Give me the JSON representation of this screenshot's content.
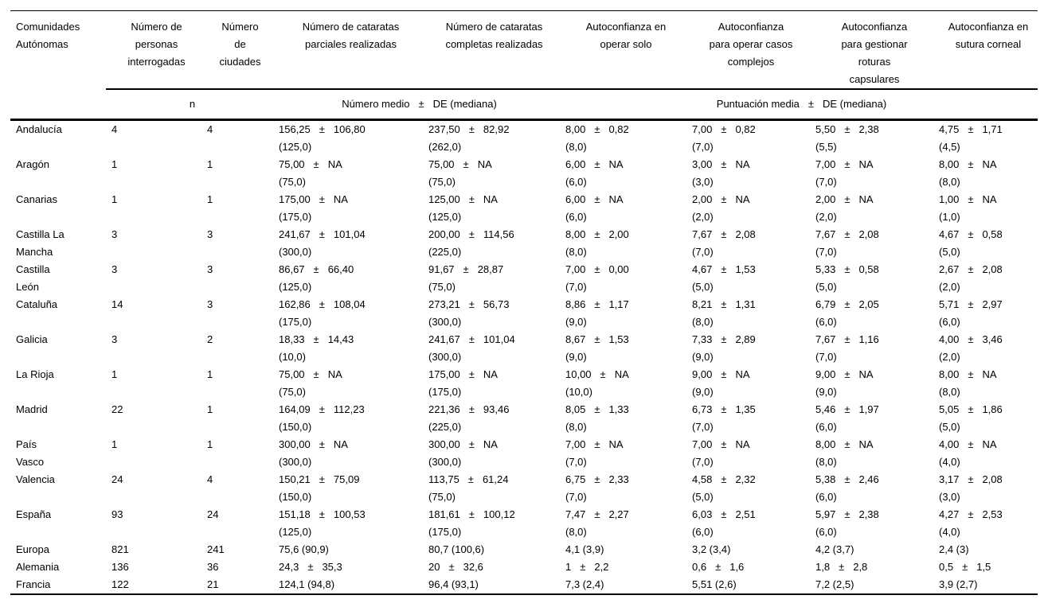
{
  "table": {
    "pm_sign": "±",
    "columns": [
      "Comunidades\nAutónomas",
      "Número de\npersonas\ninterrogadas",
      "Número\nde\nciudades",
      "Número de cataratas\nparciales realizadas",
      "Número de cataratas\ncompletas realizadas",
      "Autoconfianza en\noperar solo",
      "Autoconfianza\npara operar casos\ncomplejos",
      "Autoconfianza\npara gestionar\nroturas\ncapsulares",
      "Autoconfianza en\nsutura corneal"
    ],
    "subheader": {
      "n_label": "n",
      "numero_medio": "Número medio",
      "de_mediana": "DE (mediana)",
      "puntuacion_media": "Puntuación media"
    },
    "rows": [
      {
        "name": "Andalucía",
        "personas": "4",
        "ciudades": "4",
        "values": [
          {
            "mean": "156,25",
            "sd": "106,80",
            "median": "(125,0)"
          },
          {
            "mean": "237,50",
            "sd": "82,92",
            "median": "(262,0)"
          },
          {
            "mean": "8,00",
            "sd": "0,82",
            "median": "(8,0)"
          },
          {
            "mean": "7,00",
            "sd": "0,82",
            "median": "(7,0)"
          },
          {
            "mean": "5,50",
            "sd": "2,38",
            "median": "(5,5)"
          },
          {
            "mean": "4,75",
            "sd": "1,71",
            "median": "(4,5)"
          }
        ]
      },
      {
        "name": "Aragón",
        "personas": "1",
        "ciudades": "1",
        "values": [
          {
            "mean": "75,00",
            "sd": "NA",
            "median": "(75,0)"
          },
          {
            "mean": "75,00",
            "sd": "NA",
            "median": "(75,0)"
          },
          {
            "mean": "6,00",
            "sd": "NA",
            "median": "(6,0)"
          },
          {
            "mean": "3,00",
            "sd": "NA",
            "median": "(3,0)"
          },
          {
            "mean": "7,00",
            "sd": "NA",
            "median": "(7,0)"
          },
          {
            "mean": "8,00",
            "sd": "NA",
            "median": "(8,0)"
          }
        ]
      },
      {
        "name": "Canarias",
        "personas": "1",
        "ciudades": "1",
        "values": [
          {
            "mean": "175,00",
            "sd": "NA",
            "median": "(175,0)"
          },
          {
            "mean": "125,00",
            "sd": "NA",
            "median": "(125,0)"
          },
          {
            "mean": "6,00",
            "sd": "NA",
            "median": "(6,0)"
          },
          {
            "mean": "2,00",
            "sd": "NA",
            "median": "(2,0)"
          },
          {
            "mean": "2,00",
            "sd": "NA",
            "median": "(2,0)"
          },
          {
            "mean": "1,00",
            "sd": "NA",
            "median": "(1,0)"
          }
        ]
      },
      {
        "name": "Castilla La\nMancha",
        "personas": "3",
        "ciudades": "3",
        "values": [
          {
            "mean": "241,67",
            "sd": "101,04",
            "median": "(300,0)"
          },
          {
            "mean": "200,00",
            "sd": "114,56",
            "median": "(225,0)"
          },
          {
            "mean": "8,00",
            "sd": "2,00",
            "median": "(8,0)"
          },
          {
            "mean": "7,67",
            "sd": "2,08",
            "median": "(7,0)"
          },
          {
            "mean": "7,67",
            "sd": "2,08",
            "median": "(7,0)"
          },
          {
            "mean": "4,67",
            "sd": "0,58",
            "median": "(5,0)"
          }
        ]
      },
      {
        "name": "Castilla\nLeón",
        "personas": "3",
        "ciudades": "3",
        "values": [
          {
            "mean": "86,67",
            "sd": "66,40",
            "median": "(125,0)"
          },
          {
            "mean": "91,67",
            "sd": "28,87",
            "median": "(75,0)"
          },
          {
            "mean": "7,00",
            "sd": "0,00",
            "median": "(7,0)"
          },
          {
            "mean": "4,67",
            "sd": "1,53",
            "median": "(5,0)"
          },
          {
            "mean": "5,33",
            "sd": "0,58",
            "median": "(5,0)"
          },
          {
            "mean": "2,67",
            "sd": "2,08",
            "median": "(2,0)"
          }
        ]
      },
      {
        "name": "Cataluña",
        "personas": "14",
        "ciudades": "3",
        "values": [
          {
            "mean": "162,86",
            "sd": "108,04",
            "median": "(175,0)"
          },
          {
            "mean": "273,21",
            "sd": "56,73",
            "median": "(300,0)"
          },
          {
            "mean": "8,86",
            "sd": "1,17",
            "median": "(9,0)"
          },
          {
            "mean": "8,21",
            "sd": "1,31",
            "median": "(8,0)"
          },
          {
            "mean": "6,79",
            "sd": "2,05",
            "median": "(6,0)"
          },
          {
            "mean": "5,71",
            "sd": "2,97",
            "median": "(6,0)"
          }
        ]
      },
      {
        "name": "Galicia",
        "personas": "3",
        "ciudades": "2",
        "values": [
          {
            "mean": "18,33",
            "sd": "14,43",
            "median": "(10,0)"
          },
          {
            "mean": "241,67",
            "sd": "101,04",
            "median": "(300,0)"
          },
          {
            "mean": "8,67",
            "sd": "1,53",
            "median": "(9,0)"
          },
          {
            "mean": "7,33",
            "sd": "2,89",
            "median": "(9,0)"
          },
          {
            "mean": "7,67",
            "sd": "1,16",
            "median": "(7,0)"
          },
          {
            "mean": "4,00",
            "sd": "3,46",
            "median": "(2,0)"
          }
        ]
      },
      {
        "name": "La Rioja",
        "personas": "1",
        "ciudades": "1",
        "values": [
          {
            "mean": "75,00",
            "sd": "NA",
            "median": "(75,0)"
          },
          {
            "mean": "175,00",
            "sd": "NA",
            "median": "(175,0)"
          },
          {
            "mean": "10,00",
            "sd": "NA",
            "median": "(10,0)"
          },
          {
            "mean": "9,00",
            "sd": "NA",
            "median": "(9,0)"
          },
          {
            "mean": "9,00",
            "sd": "NA",
            "median": "(9,0)"
          },
          {
            "mean": "8,00",
            "sd": "NA",
            "median": "(8,0)"
          }
        ]
      },
      {
        "name": "Madrid",
        "personas": "22",
        "ciudades": "1",
        "values": [
          {
            "mean": "164,09",
            "sd": "112,23",
            "median": "(150,0)"
          },
          {
            "mean": "221,36",
            "sd": "93,46",
            "median": "(225,0)"
          },
          {
            "mean": "8,05",
            "sd": "1,33",
            "median": "(8,0)"
          },
          {
            "mean": "6,73",
            "sd": "1,35",
            "median": "(7,0)"
          },
          {
            "mean": "5,46",
            "sd": "1,97",
            "median": "(6,0)"
          },
          {
            "mean": "5,05",
            "sd": "1,86",
            "median": "(5,0)"
          }
        ]
      },
      {
        "name": "País\nVasco",
        "personas": "1",
        "ciudades": "1",
        "values": [
          {
            "mean": "300,00",
            "sd": "NA",
            "median": "(300,0)"
          },
          {
            "mean": "300,00",
            "sd": "NA",
            "median": "(300,0)"
          },
          {
            "mean": "7,00",
            "sd": "NA",
            "median": "(7,0)"
          },
          {
            "mean": "7,00",
            "sd": "NA",
            "median": "(7,0)"
          },
          {
            "mean": "8,00",
            "sd": "NA",
            "median": "(8,0)"
          },
          {
            "mean": "4,00",
            "sd": "NA",
            "median": "(4,0)"
          }
        ]
      },
      {
        "name": "Valencia",
        "personas": "24",
        "ciudades": "4",
        "values": [
          {
            "mean": "150,21",
            "sd": "75,09",
            "median": "(150,0)"
          },
          {
            "mean": "113,75",
            "sd": "61,24",
            "median": "(75,0)"
          },
          {
            "mean": "6,75",
            "sd": "2,33",
            "median": "(7,0)"
          },
          {
            "mean": "4,58",
            "sd": "2,32",
            "median": "(5,0)"
          },
          {
            "mean": "5,38",
            "sd": "2,46",
            "median": "(6,0)"
          },
          {
            "mean": "3,17",
            "sd": "2,08",
            "median": "(3,0)"
          }
        ]
      },
      {
        "name": "España",
        "personas": "93",
        "ciudades": "24",
        "values": [
          {
            "mean": "151,18",
            "sd": "100,53",
            "median": "(125,0)"
          },
          {
            "mean": "181,61",
            "sd": "100,12",
            "median": "(175,0)"
          },
          {
            "mean": "7,47",
            "sd": "2,27",
            "median": "(8,0)"
          },
          {
            "mean": "6,03",
            "sd": "2,51",
            "median": "(6,0)"
          },
          {
            "mean": "5,97",
            "sd": "2,38",
            "median": "(6,0)"
          },
          {
            "mean": "4,27",
            "sd": "2,53",
            "median": "(4,0)"
          }
        ]
      },
      {
        "name": "Europa",
        "personas": "821",
        "ciudades": "241",
        "values": [
          {
            "text": "75,6 (90,9)"
          },
          {
            "text": "80,7 (100,6)"
          },
          {
            "text": "4,1 (3,9)"
          },
          {
            "text": "3,2 (3,4)"
          },
          {
            "text": "4,2 (3,7)"
          },
          {
            "text": "2,4 (3)"
          }
        ]
      },
      {
        "name": "Alemania",
        "personas": "136",
        "ciudades": "36",
        "values": [
          {
            "mean": "24,3",
            "sd": "35,3"
          },
          {
            "mean": "20",
            "sd": "32,6"
          },
          {
            "mean": "1",
            "sd": "2,2"
          },
          {
            "mean": "0,6",
            "sd": "1,6"
          },
          {
            "mean": "1,8",
            "sd": "2,8"
          },
          {
            "mean": "0,5",
            "sd": "1,5"
          }
        ]
      },
      {
        "name": "Francia",
        "personas": "122",
        "ciudades": "21",
        "values": [
          {
            "text": "124,1 (94,8)"
          },
          {
            "text": "96,4 (93,1)"
          },
          {
            "text": "7,3 (2,4)"
          },
          {
            "text": "5,51 (2,6)"
          },
          {
            "text": "7,2 (2,5)"
          },
          {
            "text": "3,9 (2,7)"
          }
        ]
      }
    ]
  }
}
